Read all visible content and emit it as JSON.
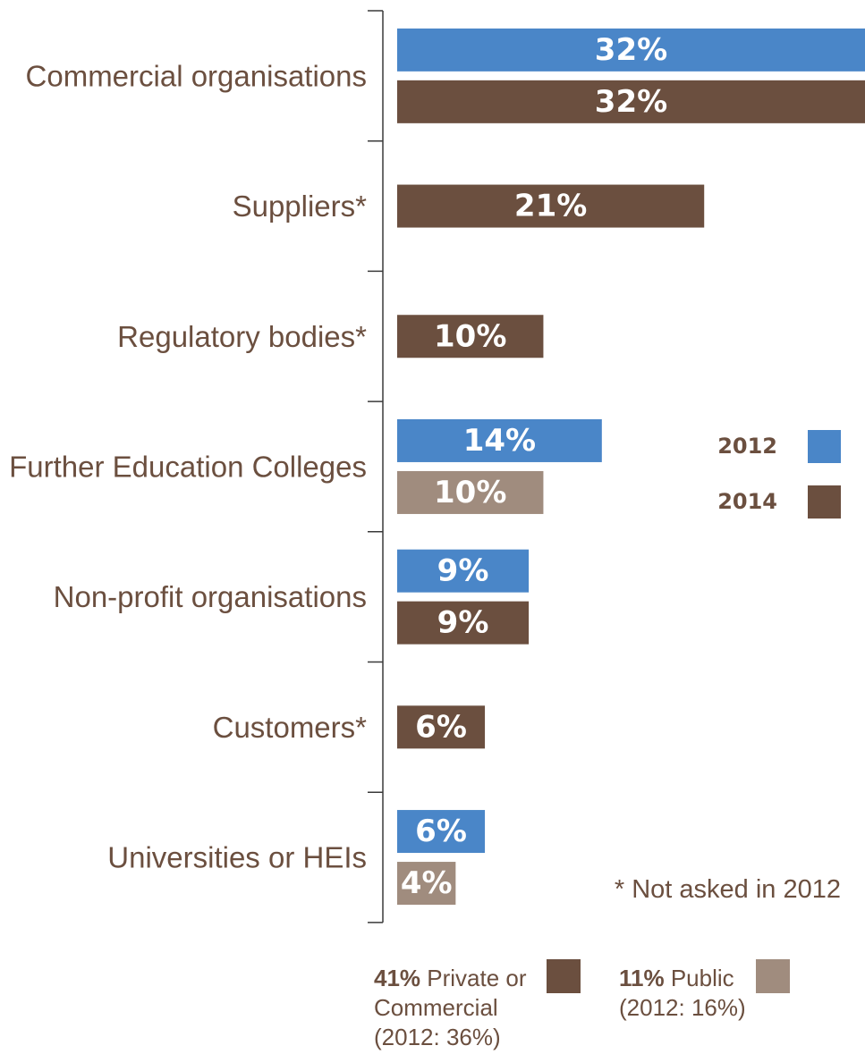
{
  "chart_data": {
    "type": "bar",
    "orientation": "horizontal",
    "categories": [
      "Commercial organisations",
      "Suppliers*",
      "Regulatory bodies*",
      "Further Education Colleges",
      "Non-profit organisations",
      "Customers*",
      "Universities or HEIs"
    ],
    "bars": [
      {
        "category": 0,
        "series": "2012",
        "value": 32,
        "label": "32%",
        "color": "#4a86c8"
      },
      {
        "category": 0,
        "series": "2014",
        "value": 32,
        "label": "32%",
        "color": "#6b4f3f"
      },
      {
        "category": 1,
        "series": "2014",
        "value": 21,
        "label": "21%",
        "color": "#6b4f3f"
      },
      {
        "category": 2,
        "series": "2014",
        "value": 10,
        "label": "10%",
        "color": "#6b4f3f"
      },
      {
        "category": 3,
        "series": "2012",
        "value": 14,
        "label": "14%",
        "color": "#4a86c8"
      },
      {
        "category": 3,
        "series": "2014",
        "value": 10,
        "label": "10%",
        "color": "#a08c7e"
      },
      {
        "category": 4,
        "series": "2012",
        "value": 9,
        "label": "9%",
        "color": "#4a86c8"
      },
      {
        "category": 4,
        "series": "2014",
        "value": 9,
        "label": "9%",
        "color": "#6b4f3f"
      },
      {
        "category": 5,
        "series": "2014",
        "value": 6,
        "label": "6%",
        "color": "#6b4f3f"
      },
      {
        "category": 6,
        "series": "2012",
        "value": 6,
        "label": "6%",
        "color": "#4a86c8"
      },
      {
        "category": 6,
        "series": "2014",
        "value": 4,
        "label": "4%",
        "color": "#a08c7e"
      }
    ],
    "series": [
      {
        "name": "2012",
        "color": "#4a86c8"
      },
      {
        "name": "2014",
        "color": "#6b4f3f"
      }
    ],
    "xlim": [
      0,
      32
    ],
    "grid": false,
    "legend_position": "right",
    "note": "* Not asked in 2012"
  },
  "footer": {
    "private": {
      "pct": "41%",
      "line1": "Private or",
      "line2": "Commercial",
      "line3": "(2012: 36%)",
      "color": "#6b4f3f"
    },
    "public": {
      "pct": "11%",
      "line1": "Public",
      "line2": "(2012: 16%)",
      "color": "#a08c7e"
    }
  },
  "colors": {
    "axis": "#3a3a3a",
    "text": "#6b4f3f"
  }
}
